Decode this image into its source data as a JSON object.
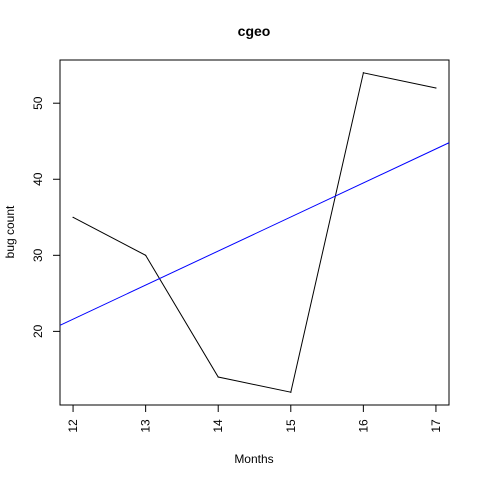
{
  "chart_data": {
    "type": "line",
    "title": "cgeo",
    "xlabel": "Months",
    "ylabel": "bug count",
    "xlim": [
      11.82,
      17.18
    ],
    "ylim": [
      10.32,
      55.68
    ],
    "x_ticks": [
      "12",
      "13",
      "14",
      "15",
      "16",
      "17"
    ],
    "y_ticks": [
      "20",
      "30",
      "40",
      "50"
    ],
    "grid": false,
    "series": [
      {
        "color": "#000000",
        "points": [
          {
            "x": 12,
            "y": 35
          },
          {
            "x": 13,
            "y": 30
          },
          {
            "x": 14,
            "y": 14
          },
          {
            "x": 15,
            "y": 12
          },
          {
            "x": 16,
            "y": 54
          },
          {
            "x": 17,
            "y": 52
          }
        ]
      }
    ],
    "trend_line": {
      "color": "#0000ff",
      "start": {
        "x": 11.82,
        "y": 20.8
      },
      "end": {
        "x": 17.18,
        "y": 44.8
      }
    }
  }
}
